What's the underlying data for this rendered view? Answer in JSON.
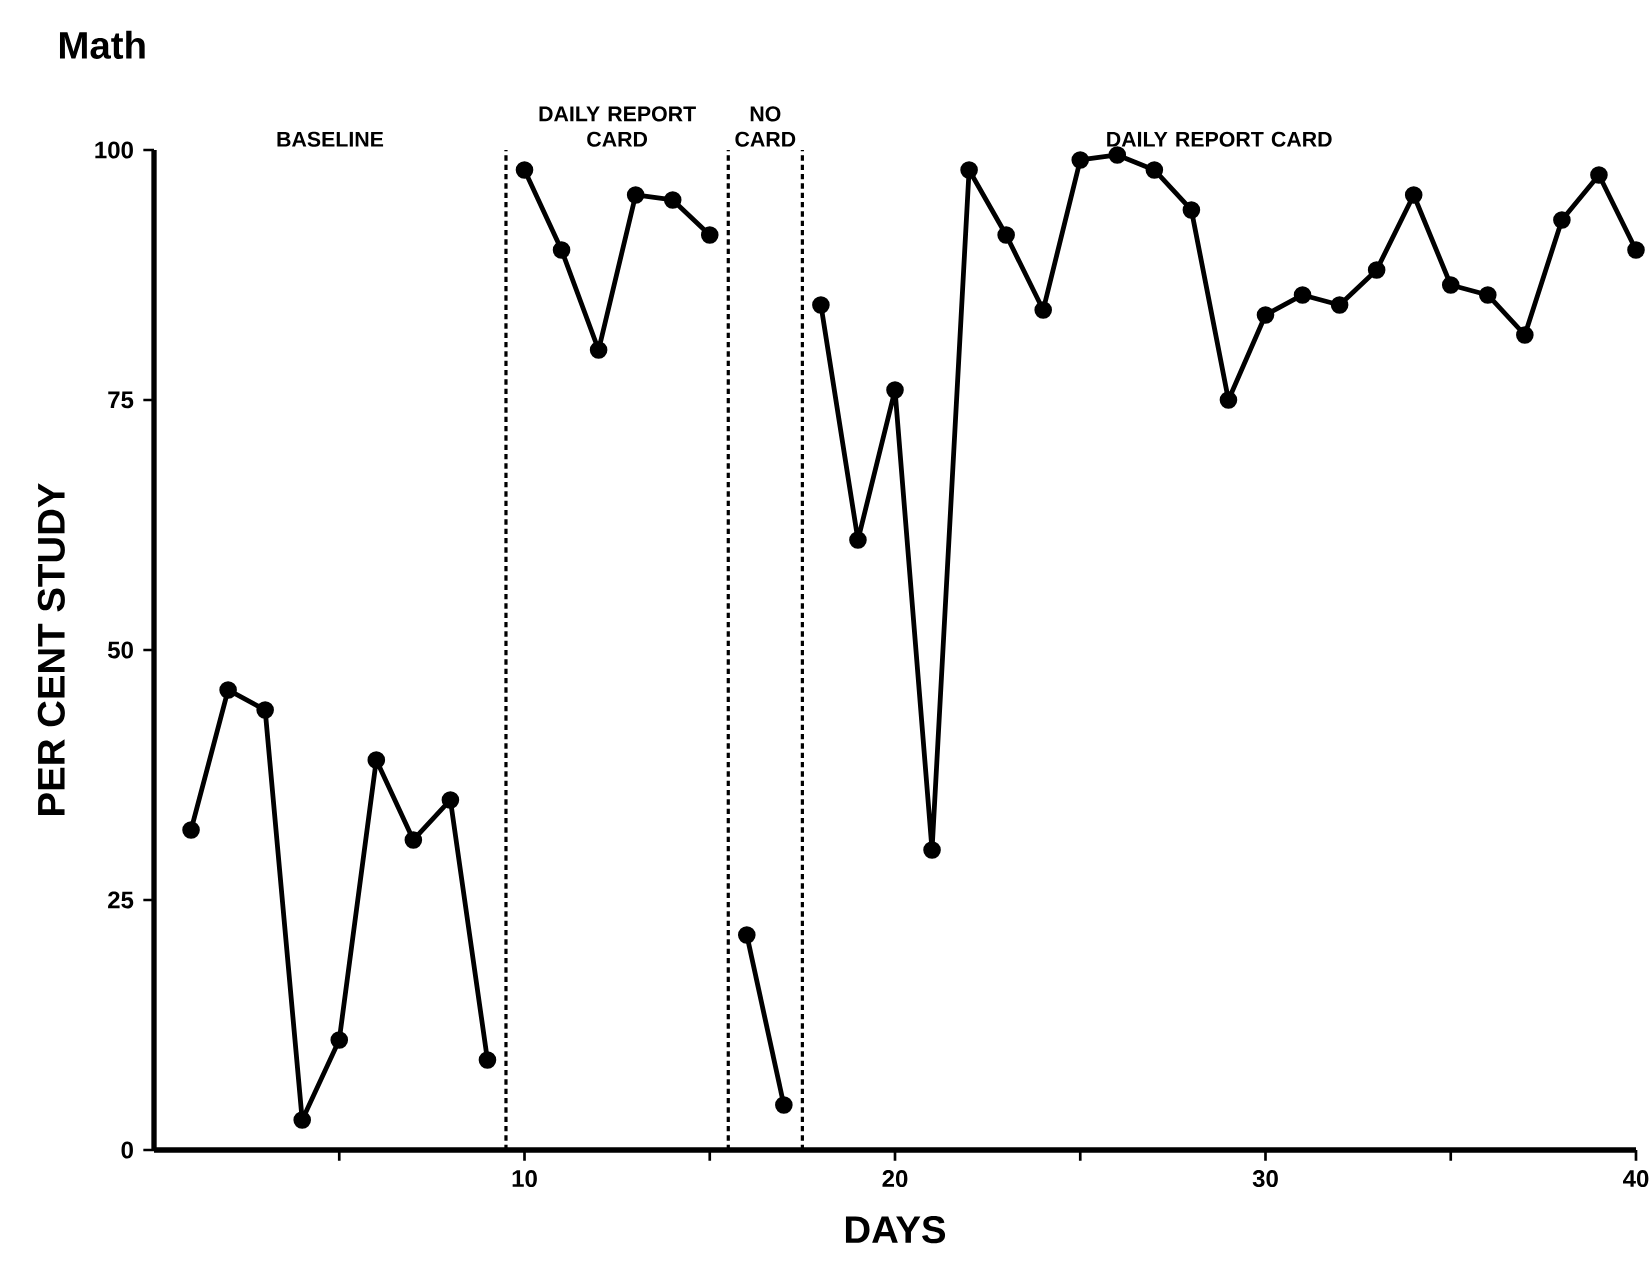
{
  "chart_data": {
    "type": "line",
    "title": "Math",
    "xlabel": "DAYS",
    "ylabel": "PER CENT STUDY",
    "xlim": [
      0,
      40
    ],
    "ylim": [
      0,
      100
    ],
    "xticks": [
      {
        "value": 5,
        "label": null
      },
      10,
      {
        "value": 15,
        "label": null
      },
      20,
      {
        "value": 25,
        "label": null
      },
      30,
      {
        "value": 35,
        "label": null
      },
      40
    ],
    "yticks": [
      0,
      25,
      50,
      75,
      100
    ],
    "marker": "circle",
    "line_style": "solid",
    "grid": false,
    "series": [
      {
        "color": "#000000",
        "x": [
          1,
          2,
          3,
          4,
          5,
          6,
          7,
          8,
          9
        ],
        "values": [
          32,
          46,
          44,
          3,
          11,
          39,
          31,
          35,
          9
        ]
      },
      {
        "color": "#000000",
        "x": [
          10,
          11,
          12,
          13,
          14,
          15
        ],
        "values": [
          98,
          90,
          80,
          95.5,
          95,
          91.5
        ]
      },
      {
        "color": "#000000",
        "x": [
          16,
          17
        ],
        "values": [
          21.5,
          4.5
        ]
      },
      {
        "color": "#000000",
        "x": [
          18,
          19,
          20,
          21,
          22,
          23,
          24,
          25,
          26,
          27,
          28,
          29,
          30,
          31,
          32,
          33,
          34,
          35,
          36,
          37,
          38,
          39,
          40
        ],
        "values": [
          84.5,
          61,
          76,
          30,
          98,
          91.5,
          84,
          99,
          99.5,
          98,
          94,
          75,
          83.5,
          85.5,
          84.5,
          88,
          95.5,
          86.5,
          85.5,
          81.5,
          93,
          97.5,
          90
        ]
      }
    ],
    "ref_lines": [
      {
        "axis": "x",
        "value": 9.5,
        "line_style": "dashed"
      },
      {
        "axis": "x",
        "value": 15.5,
        "line_style": "dashed"
      },
      {
        "axis": "x",
        "value": 17.5,
        "line_style": "dashed"
      }
    ],
    "annotations": [
      "BASELINE",
      "DAILY REPORT CARD",
      "NO CARD",
      "DAILY REPORT CARD"
    ]
  }
}
